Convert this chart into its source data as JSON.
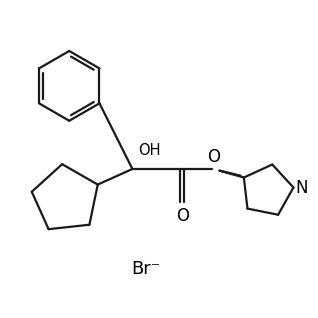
{
  "background_color": "#ffffff",
  "line_color": "#1a1a1a",
  "line_width": 1.6,
  "text_color": "#000000",
  "fig_size": [
    3.18,
    3.18
  ],
  "dpi": 100,
  "br_label": "Br⁻",
  "oh_label": "OH",
  "o_ester_label": "O",
  "o_carbonyl_label": "O",
  "n_label": "N"
}
